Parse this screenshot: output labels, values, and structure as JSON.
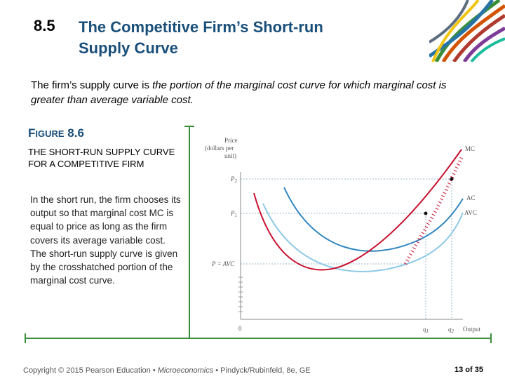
{
  "header": {
    "section_number": "8.5",
    "title_line1": "The Competitive Firm’s Short-run",
    "title_line2": "Supply Curve"
  },
  "intro": {
    "text_a": "The firm’s supply curve is ",
    "text_b": "the portion of the marginal cost curve for which marginal cost is greater than average variable cost."
  },
  "figure": {
    "label_prefix": "F",
    "label_small": "IGURE",
    "label_number": "8.6",
    "heading": "THE SHORT-RUN SUPPLY CURVE FOR A COMPETITIVE FIRM",
    "caption_1": "In the short run, the firm chooses its output so that marginal cost MC is equal to price as long as the firm covers its average variable cost.",
    "caption_2": "The short-run supply curve is given by the crosshatched portion of the marginal cost curve."
  },
  "graph": {
    "y_axis_title_1": "Price",
    "y_axis_title_2": "(dollars per",
    "y_axis_title_3": "unit)",
    "y_tick_p2": "P",
    "y_tick_p2_sub": "2",
    "y_tick_p1": "P",
    "y_tick_p1_sub": "1",
    "y_tick_avc": "P = AVC",
    "origin": "0",
    "x_tick_q1": "q",
    "x_tick_q1_sub": "1",
    "x_tick_q2": "q",
    "x_tick_q2_sub": "2",
    "x_axis_title": "Output",
    "mc_label": "MC",
    "ac_label": "AC",
    "avc_label": "AVC",
    "colors": {
      "mc": "#c8102e",
      "ac": "#2e86c1",
      "avc": "#8ec9e8",
      "dashed": "#9bb7c7"
    }
  },
  "footer": {
    "copyright": "Copyright © 2015 Pearson Education • ",
    "book": "Microeconomics",
    "authors": " • Pindyck/Rubinfeld, 8e, GE",
    "page_current": "13",
    "page_of": " of ",
    "page_total": "35"
  }
}
